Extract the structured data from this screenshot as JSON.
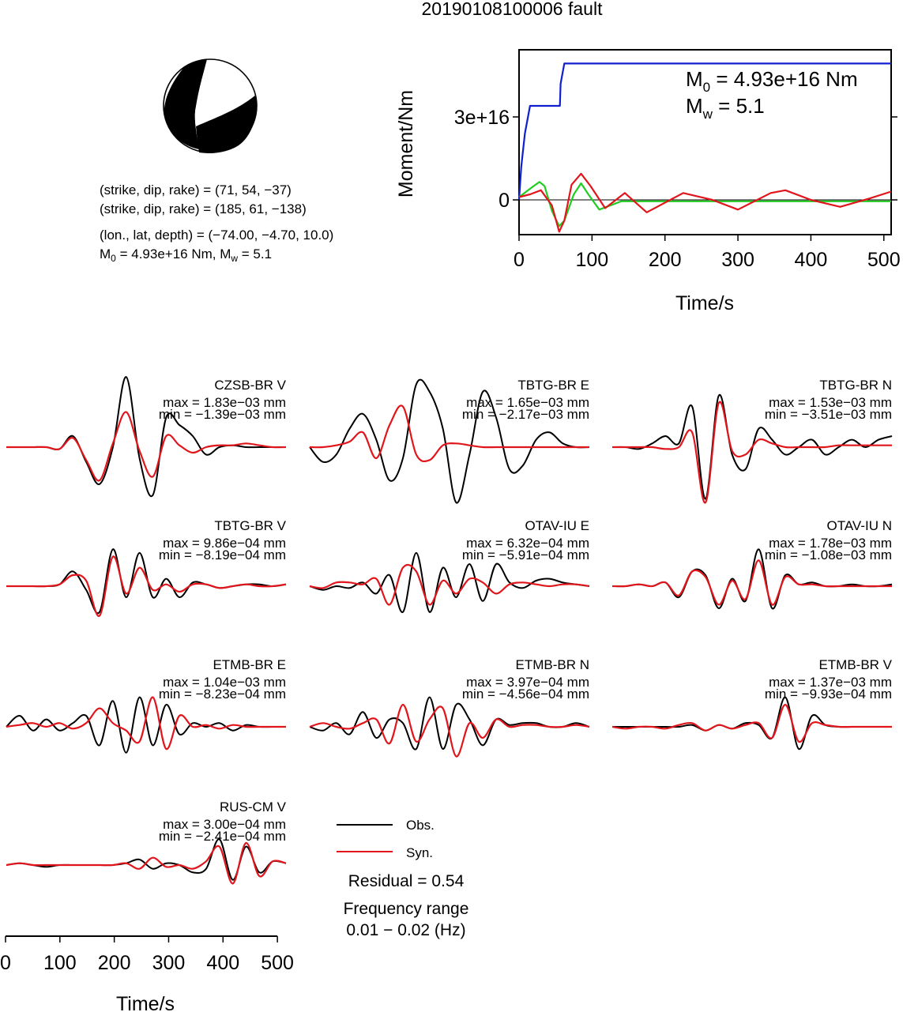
{
  "title": "20190108100006 fault",
  "mechanism": {
    "plane1": "(strike, dip, rake) = (71, 54, −37)",
    "plane2": "(strike, dip, rake) = (185, 61, −138)",
    "location": "(lon., lat, depth) = (−74.00, −4.70, 10.0)",
    "m0_prefix": "M",
    "m0_sub": "0",
    "m0_value": " = 4.93e+16 Nm, M",
    "mw_sub": "w",
    "mw_value": " = 5.1"
  },
  "colors": {
    "obs": "#000000",
    "syn": "#e0161c",
    "moment": "#1020d0",
    "rate": "#22cc22"
  },
  "chart_data": [
    {
      "type": "line",
      "ylabel": "Moment/Nm",
      "xlabel": "Time/s",
      "xlim": [
        0,
        510
      ],
      "xticks": [
        "0",
        "100",
        "200",
        "300",
        "400",
        "500"
      ],
      "yticks": [
        "0",
        "3e+16"
      ],
      "annotation": {
        "m0_prefix": "M",
        "m0_sub": "0",
        "m0_value": " = 4.93e+16 Nm",
        "mw_prefix": "M",
        "mw_sub": "w",
        "mw_value": " = 5.1"
      },
      "series": [
        {
          "color": "blue",
          "x": [
            0,
            3,
            8,
            15,
            20,
            56,
            57,
            62,
            65,
            510
          ],
          "y": [
            0,
            1.2e+16,
            2.4e+16,
            3.4e+16,
            3.4e+16,
            3.4e+16,
            4.2e+16,
            4.93e+16,
            4.93e+16,
            4.93e+16
          ]
        },
        {
          "color": "green",
          "x": [
            0,
            10,
            20,
            28,
            35,
            45,
            55,
            62,
            75,
            85,
            95,
            110,
            140,
            200,
            510
          ],
          "y": [
            1000000000000000.0,
            3000000000000000.0,
            5000000000000000.0,
            6500000000000000.0,
            5000000000000000.0,
            -4000000000000000.0,
            -9500000000000000.0,
            -7500000000000000.0,
            2000000000000000.0,
            6000000000000000.0,
            2000000000000000.0,
            -3500000000000000.0,
            -500000000000000.0,
            -500000000000000.0,
            -500000000000000.0
          ]
        },
        {
          "color": "red",
          "x": [
            0,
            15,
            30,
            45,
            55,
            62,
            72,
            85,
            98,
            118,
            145,
            175,
            225,
            265,
            300,
            345,
            365,
            400,
            440,
            480,
            510
          ],
          "y": [
            1000000000000000.0,
            2000000000000000.0,
            3500000000000000.0,
            -2000000000000000.0,
            -1.15e+16,
            -7500000000000000.0,
            5500000000000000.0,
            9500000000000000.0,
            5000000000000000.0,
            -3000000000000000.0,
            2500000000000000.0,
            -4500000000000000.0,
            2500000000000000.0,
            0.0,
            -3500000000000000.0,
            2500000000000000.0,
            3500000000000000.0,
            0.0,
            -2500000000000000.0,
            500000000000000.0,
            3000000000000000.0
          ]
        }
      ]
    },
    {
      "type": "line",
      "panels": [
        {
          "station": "CZSB-BR V",
          "max": "max = 1.83e−03 mm",
          "min": "min = −1.39e−03 mm",
          "obs": [
            0,
            0,
            0,
            0,
            -0.05,
            0.3,
            -0.4,
            -1.0,
            0.0,
            1.9,
            -0.3,
            -1.3,
            0.8,
            0.6,
            0.3,
            -0.2,
            0,
            0.05,
            0,
            0,
            0,
            0
          ],
          "syn": [
            0,
            0,
            0,
            0,
            -0.05,
            0.25,
            -0.35,
            -0.9,
            0.1,
            0.95,
            -0.1,
            -0.8,
            0.3,
            0.05,
            -0.15,
            0,
            0.05,
            0.05,
            0.1,
            0.05,
            0,
            0
          ]
        },
        {
          "station": "TBTG-BR E",
          "max": "max = 1.65e−03 mm",
          "min": "min = −2.17e−03 mm",
          "obs": [
            0,
            -0.4,
            -0.2,
            0.5,
            0.9,
            0.2,
            -0.9,
            -0.3,
            1.7,
            1.5,
            0.5,
            -1.5,
            -0.2,
            1.5,
            0.8,
            -0.6,
            -0.5,
            0.2,
            0.4,
            0.1,
            0,
            0
          ],
          "syn": [
            0,
            0,
            0.05,
            0.15,
            0.4,
            -0.3,
            0.6,
            1.1,
            -0.2,
            -0.35,
            0.05,
            0.1,
            0.05,
            0,
            0,
            0,
            0,
            0,
            0,
            0,
            0,
            0
          ]
        },
        {
          "station": "TBTG-BR N",
          "max": "max = 1.53e−03 mm",
          "min": "min = −3.51e−03 mm",
          "obs": [
            0,
            0,
            -0.05,
            0.1,
            0.3,
            0.1,
            1.1,
            -1.4,
            1.4,
            -0.2,
            -0.6,
            0.5,
            0.2,
            -0.2,
            0,
            0.2,
            -0.2,
            0,
            0.2,
            0,
            0.2,
            0.3
          ],
          "syn": [
            0,
            0,
            0,
            0,
            -0.05,
            0,
            0.4,
            -1.5,
            1.2,
            -0.1,
            -0.2,
            0.2,
            0.1,
            0,
            0,
            0,
            0,
            0.05,
            0.05,
            0.05,
            0.05,
            0.05
          ]
        },
        {
          "station": "TBTG-BR V",
          "max": "max = 9.86e−04 mm",
          "min": "min = −8.19e−04 mm",
          "obs": [
            0,
            0,
            0,
            0,
            0.05,
            0.4,
            -0.1,
            -0.7,
            1.0,
            -0.3,
            0.9,
            -0.3,
            0.2,
            -0.3,
            0.1,
            0.05,
            -0.05,
            0,
            0.05,
            0.05,
            0,
            0.05
          ],
          "syn": [
            0,
            0,
            0,
            0,
            0.05,
            0.3,
            0.15,
            -0.8,
            0.8,
            -0.2,
            0.5,
            -0.1,
            0.05,
            -0.15,
            0.05,
            0.05,
            -0.05,
            0,
            0.05,
            0,
            0,
            0.05
          ]
        },
        {
          "station": "OTAV-IU E",
          "max": "max = 6.32e−04 mm",
          "min": "min = −5.91e−04 mm",
          "obs": [
            0,
            -0.1,
            0,
            -0.05,
            0.1,
            -0.2,
            0.3,
            -0.7,
            0.9,
            -0.7,
            0.5,
            -0.3,
            0.6,
            -0.4,
            0.6,
            0.1,
            -0.05,
            0.15,
            0.2,
            0.1,
            0.05,
            0
          ],
          "syn": [
            0,
            -0.05,
            0.1,
            0.1,
            0.05,
            0.2,
            -0.5,
            0.5,
            0.4,
            -0.5,
            0.15,
            -0.2,
            0.2,
            0.1,
            -0.2,
            0.05,
            0.1,
            0.05,
            0,
            0.05,
            0.05,
            0
          ],
          "obs_smooth": 0
        },
        {
          "station": "OTAV-IU N",
          "max": "max = 1.78e−03 mm",
          "min": "min = −1.08e−03 mm",
          "obs": [
            0,
            0,
            0.05,
            0,
            0.1,
            -0.3,
            0.4,
            0.3,
            -0.6,
            0.2,
            -0.4,
            1.0,
            -0.6,
            0.3,
            0.05,
            0.1,
            0,
            0,
            0.05,
            0,
            0,
            0.05
          ],
          "syn": [
            0,
            0,
            0.05,
            0,
            0.1,
            -0.25,
            0.4,
            0.25,
            -0.5,
            0.15,
            -0.35,
            0.7,
            -0.5,
            0.25,
            0.05,
            0.05,
            0,
            0,
            0,
            0,
            0,
            0
          ]
        },
        {
          "station": "ETMB-BR E",
          "max": "max = 1.04e−03 mm",
          "min": "min = −8.23e−04 mm",
          "obs": [
            0,
            0.3,
            -0.1,
            0.2,
            -0.1,
            0.1,
            0.3,
            -0.5,
            0.7,
            -0.7,
            0.8,
            -0.5,
            0.6,
            -0.2,
            0.1,
            0,
            0.1,
            -0.1,
            0.05,
            0,
            0,
            0
          ],
          "syn": [
            0,
            0.05,
            0.1,
            0,
            0.1,
            -0.05,
            0.1,
            0.5,
            0.1,
            -0.1,
            -0.4,
            0.8,
            -0.6,
            0.3,
            0,
            0.05,
            -0.05,
            0.05,
            0,
            0,
            0,
            0
          ]
        },
        {
          "station": "ETMB-BR N",
          "max": "max = 3.97e−04 mm",
          "min": "min = −4.56e−04 mm",
          "obs": [
            0,
            -0.1,
            0.1,
            -0.2,
            0.4,
            -0.3,
            0.2,
            0.1,
            -0.6,
            0.8,
            -0.6,
            0.6,
            0.2,
            -0.5,
            0.2,
            0.05,
            0.1,
            0.1,
            0,
            0,
            0.1,
            0
          ],
          "syn": [
            0,
            0.1,
            0,
            -0.05,
            0.1,
            0.2,
            -0.45,
            0.6,
            -0.4,
            0.2,
            0.5,
            -0.8,
            0.1,
            -0.3,
            0.2,
            0,
            0.05,
            0.05,
            0,
            0,
            0.05,
            0
          ],
          "obs_smooth": 0
        },
        {
          "station": "ETMB-BR V",
          "max": "max = 1.37e−03 mm",
          "min": "min = −9.93e−04 mm",
          "obs": [
            0,
            0,
            0,
            0,
            0,
            0,
            0.05,
            -0.1,
            0.05,
            -0.05,
            0.1,
            0.05,
            -0.3,
            0.8,
            -0.6,
            0.3,
            0.05,
            0,
            0,
            0,
            0,
            0
          ],
          "syn": [
            0,
            -0.05,
            0,
            0,
            -0.05,
            0.05,
            0.1,
            -0.1,
            0.05,
            -0.05,
            0.05,
            0.1,
            -0.3,
            0.6,
            -0.4,
            0.1,
            0.05,
            0,
            0,
            0,
            0,
            0
          ]
        },
        {
          "station": "RUS-CM V",
          "max": "max = 3.00e−04 mm",
          "min": "min = −2.41e−04 mm",
          "obs": [
            0,
            0.05,
            0,
            -0.05,
            0,
            0,
            0,
            0,
            0,
            0.05,
            0.15,
            -0.1,
            0.05,
            0,
            -0.2,
            -0.1,
            0.7,
            -0.4,
            0.5,
            -0.2,
            0.1,
            0.05
          ],
          "syn": [
            0,
            0.05,
            0,
            0,
            0,
            0,
            0,
            0,
            0,
            0.05,
            -0.1,
            0.2,
            -0.05,
            0,
            -0.1,
            0.1,
            0.5,
            -0.5,
            0.6,
            -0.3,
            0.1,
            0.05
          ],
          "obs_smooth": 0
        }
      ],
      "xlabel": "Time/s",
      "xticks": [
        "0",
        "100",
        "200",
        "300",
        "400",
        "500"
      ],
      "legend": {
        "obs": "Obs.",
        "syn": "Syn."
      },
      "residual": "Residual = 0.54",
      "freq_label": "Frequency range",
      "freq_value": "0.01 − 0.02 (Hz)"
    }
  ]
}
